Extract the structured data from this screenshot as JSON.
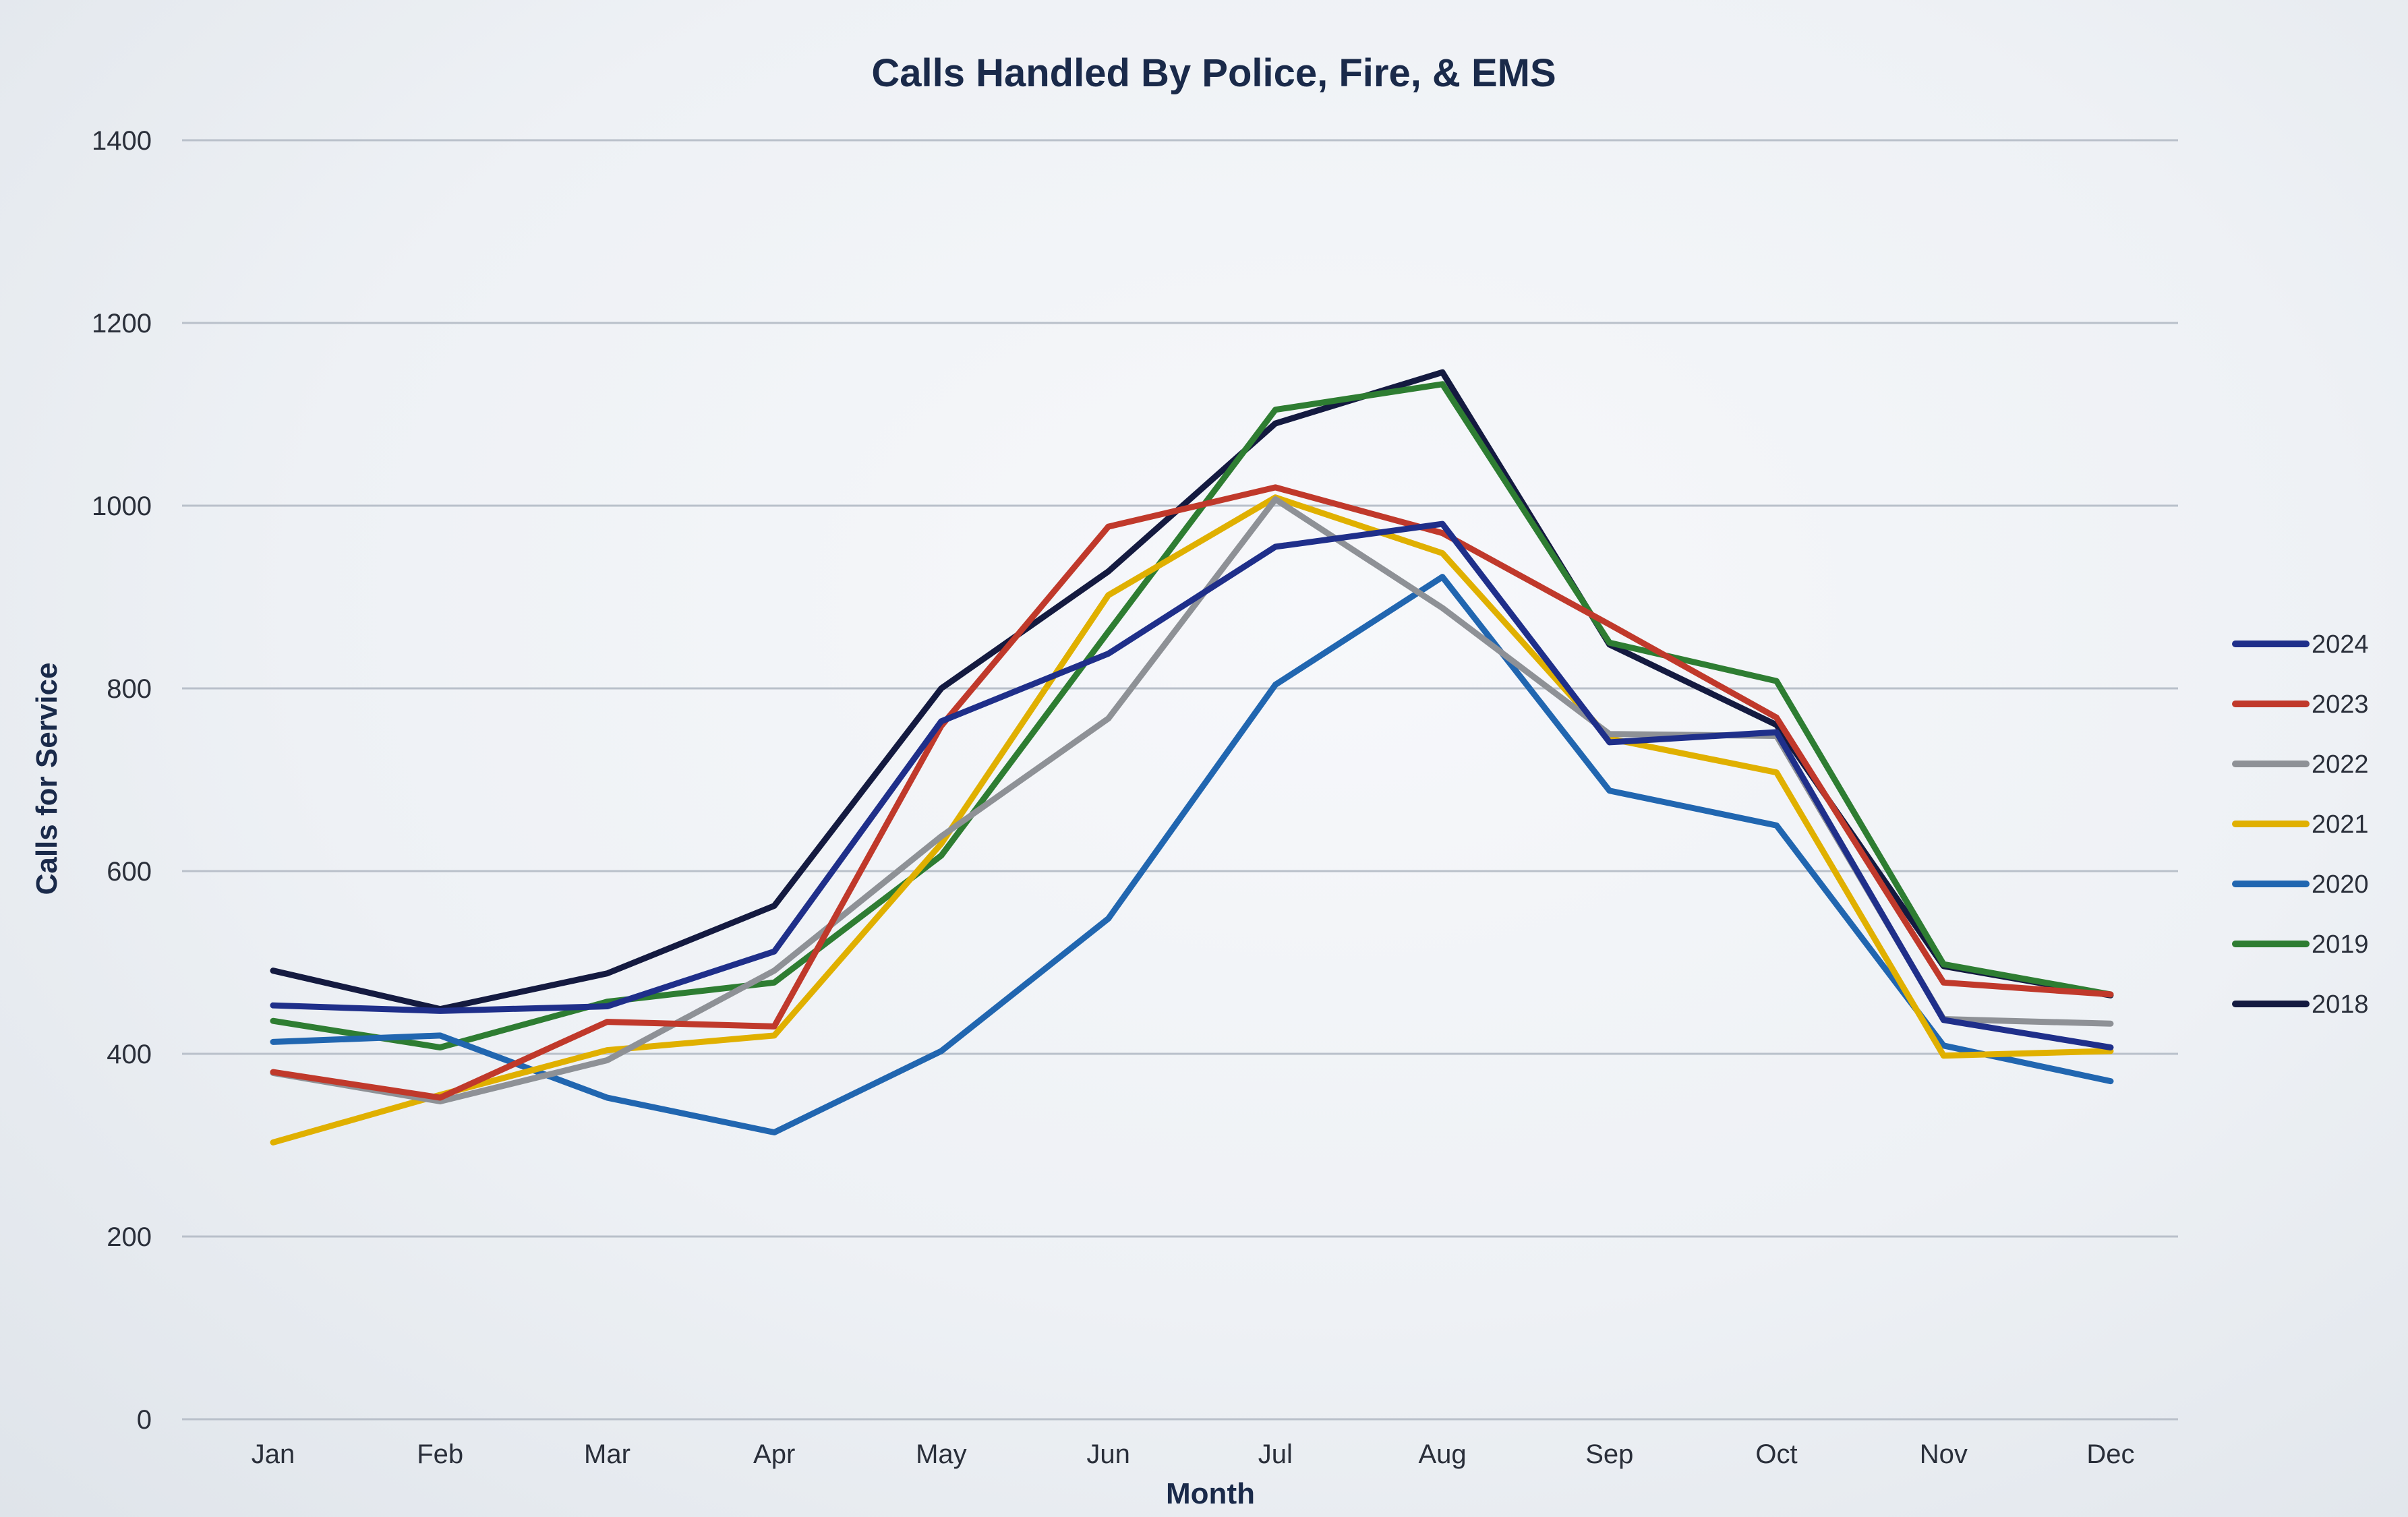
{
  "chart_data": {
    "type": "line",
    "title": "Calls Handled By Police, Fire, & EMS",
    "xlabel": "Month",
    "ylabel": "Calls for Service",
    "ylim": [
      0,
      1400
    ],
    "yticks": [
      0,
      200,
      400,
      600,
      800,
      1000,
      1200,
      1400
    ],
    "grid": true,
    "legend_position": "right",
    "categories": [
      "Jan",
      "Feb",
      "Mar",
      "Apr",
      "May",
      "Jun",
      "Jul",
      "Aug",
      "Sep",
      "Oct",
      "Nov",
      "Dec"
    ],
    "series": [
      {
        "name": "2024",
        "color": "#1f2f8a",
        "values": [
          453,
          447,
          452,
          512,
          764,
          838,
          955,
          980,
          741,
          752,
          437,
          407
        ]
      },
      {
        "name": "2023",
        "color": "#c0392b",
        "values": [
          380,
          352,
          435,
          430,
          759,
          977,
          1020,
          970,
          870,
          768,
          478,
          465
        ]
      },
      {
        "name": "2022",
        "color": "#8e9196",
        "values": [
          379,
          348,
          393,
          491,
          638,
          767,
          1007,
          888,
          750,
          748,
          438,
          433
        ]
      },
      {
        "name": "2021",
        "color": "#e0b000",
        "values": [
          303,
          355,
          404,
          420,
          630,
          902,
          1009,
          948,
          745,
          708,
          398,
          403
        ]
      },
      {
        "name": "2020",
        "color": "#2166b0",
        "values": [
          413,
          420,
          352,
          314,
          403,
          548,
          804,
          922,
          688,
          650,
          409,
          370
        ]
      },
      {
        "name": "2019",
        "color": "#2e7d32",
        "values": [
          436,
          407,
          457,
          478,
          617,
          862,
          1105,
          1133,
          850,
          808,
          498,
          465
        ]
      },
      {
        "name": "2018",
        "color": "#141a40",
        "values": [
          491,
          449,
          488,
          562,
          800,
          928,
          1090,
          1146,
          848,
          760,
          496,
          464
        ]
      }
    ]
  }
}
